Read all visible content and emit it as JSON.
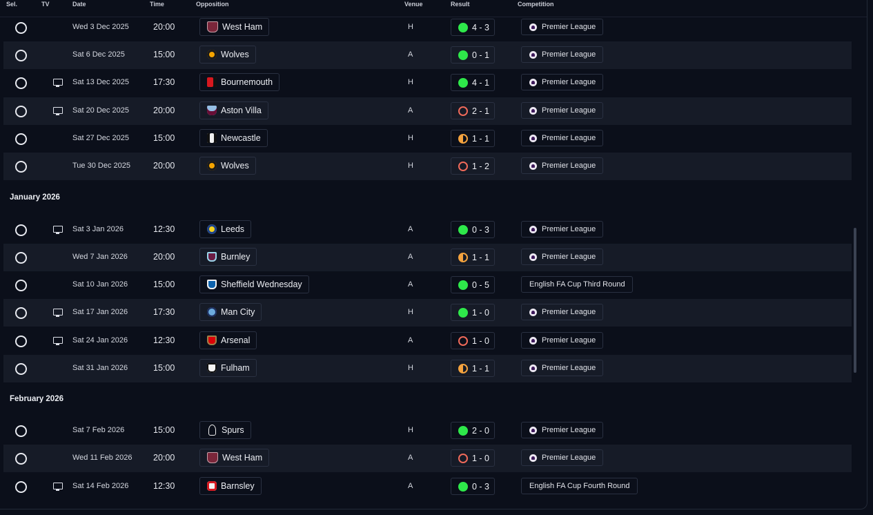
{
  "header": {
    "sel": "Sel.",
    "tv": "TV",
    "date": "Date",
    "time": "Time",
    "opposition": "Opposition",
    "venue": "Venue",
    "result": "Result",
    "competition": "Competition"
  },
  "months": {
    "january": "January 2026",
    "february": "February 2026"
  },
  "fixtures": [
    {
      "date": "Wed 3 Dec 2025",
      "time": "20:00",
      "opponent": "West Ham",
      "crest": "west-ham-crest",
      "venue": "H",
      "outcome": "win",
      "score": "4 - 3",
      "competition": "Premier League",
      "tv": false
    },
    {
      "date": "Sat 6 Dec 2025",
      "time": "15:00",
      "opponent": "Wolves",
      "crest": "wolves-crest",
      "venue": "A",
      "outcome": "win",
      "score": "0 - 1",
      "competition": "Premier League",
      "tv": false
    },
    {
      "date": "Sat 13 Dec 2025",
      "time": "17:30",
      "opponent": "Bournemouth",
      "crest": "bournemouth-crest",
      "venue": "H",
      "outcome": "win",
      "score": "4 - 1",
      "competition": "Premier League",
      "tv": true
    },
    {
      "date": "Sat 20 Dec 2025",
      "time": "20:00",
      "opponent": "Aston Villa",
      "crest": "aston-villa-crest",
      "venue": "A",
      "outcome": "loss",
      "score": "2 - 1",
      "competition": "Premier League",
      "tv": true
    },
    {
      "date": "Sat 27 Dec 2025",
      "time": "15:00",
      "opponent": "Newcastle",
      "crest": "newcastle-crest",
      "venue": "H",
      "outcome": "draw",
      "score": "1 - 1",
      "competition": "Premier League",
      "tv": false
    },
    {
      "date": "Tue 30 Dec 2025",
      "time": "20:00",
      "opponent": "Wolves",
      "crest": "wolves-crest",
      "venue": "H",
      "outcome": "loss",
      "score": "1 - 2",
      "competition": "Premier League",
      "tv": false
    },
    {
      "date": "Sat 3 Jan 2026",
      "time": "12:30",
      "opponent": "Leeds",
      "crest": "leeds-crest",
      "venue": "A",
      "outcome": "win",
      "score": "0 - 3",
      "competition": "Premier League",
      "tv": true
    },
    {
      "date": "Wed 7 Jan 2026",
      "time": "20:00",
      "opponent": "Burnley",
      "crest": "burnley-crest",
      "venue": "A",
      "outcome": "draw",
      "score": "1 - 1",
      "competition": "Premier League",
      "tv": false
    },
    {
      "date": "Sat 10 Jan 2026",
      "time": "15:00",
      "opponent": "Sheffield Wednesday",
      "crest": "sheffield-wednesday-crest",
      "venue": "A",
      "outcome": "win",
      "score": "0 - 5",
      "competition": "English FA Cup Third Round",
      "tv": false
    },
    {
      "date": "Sat 17 Jan 2026",
      "time": "17:30",
      "opponent": "Man City",
      "crest": "man-city-crest",
      "venue": "H",
      "outcome": "win",
      "score": "1 - 0",
      "competition": "Premier League",
      "tv": true
    },
    {
      "date": "Sat 24 Jan 2026",
      "time": "12:30",
      "opponent": "Arsenal",
      "crest": "arsenal-crest",
      "venue": "A",
      "outcome": "loss",
      "score": "1 - 0",
      "competition": "Premier League",
      "tv": true
    },
    {
      "date": "Sat 31 Jan 2026",
      "time": "15:00",
      "opponent": "Fulham",
      "crest": "fulham-crest",
      "venue": "H",
      "outcome": "draw",
      "score": "1 - 1",
      "competition": "Premier League",
      "tv": false
    },
    {
      "date": "Sat 7 Feb 2026",
      "time": "15:00",
      "opponent": "Spurs",
      "crest": "spurs-crest",
      "venue": "H",
      "outcome": "win",
      "score": "2 - 0",
      "competition": "Premier League",
      "tv": false
    },
    {
      "date": "Wed 11 Feb 2026",
      "time": "20:00",
      "opponent": "West Ham",
      "crest": "west-ham-crest",
      "venue": "A",
      "outcome": "loss",
      "score": "1 - 0",
      "competition": "Premier League",
      "tv": false
    },
    {
      "date": "Sat 14 Feb 2026",
      "time": "12:30",
      "opponent": "Barnsley",
      "crest": "barnsley-crest",
      "venue": "A",
      "outcome": "win",
      "score": "0 - 3",
      "competition": "English FA Cup Fourth Round",
      "tv": true
    }
  ],
  "icons": {
    "select": "radio-circle-icon",
    "tv": "tv-icon",
    "competition_logo": "premier-league-icon",
    "result_win": "green-circle-icon",
    "result_loss": "red-ring-icon",
    "result_draw": "half-filled-circle-icon"
  },
  "colors": {
    "background": "#0b0f1a",
    "row_alt": "#161b27",
    "win": "#2ee84a",
    "loss": "#f06a5a",
    "draw": "#f3a23e"
  }
}
